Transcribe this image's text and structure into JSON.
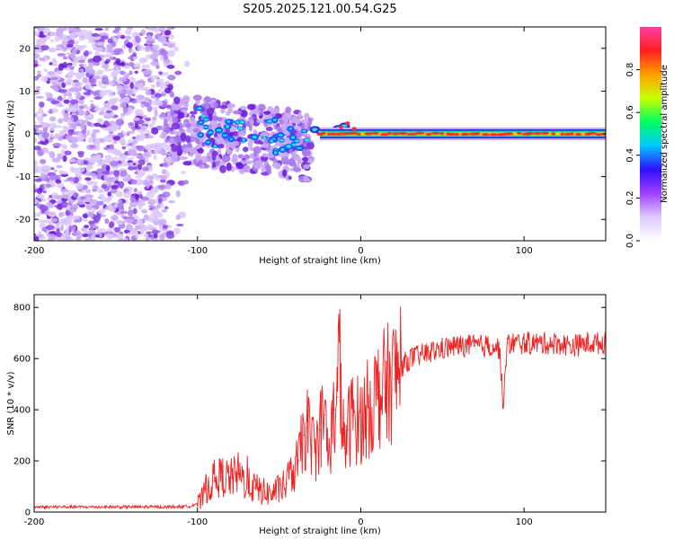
{
  "title": "S205.2025.121.00.54.G25",
  "colors": {
    "snr_line": "#ee2222",
    "scatter_low": "#d8c8f0",
    "scatter_high": "#6a1ad8",
    "band_core": "#ff2a2a",
    "band_mid": "#33ee44",
    "band_edge": "#2a2ad8"
  },
  "chart_data": [
    {
      "type": "heatmap",
      "name": "spectrogram",
      "xlabel": "Height of straight line (km)",
      "ylabel": "Frequency (Hz)",
      "xlim": [
        -200,
        150
      ],
      "ylim": [
        -25,
        25
      ],
      "x_ticks": [
        -200,
        -100,
        0,
        100
      ],
      "y_ticks": [
        -20,
        -10,
        0,
        10,
        20
      ],
      "colorbar": {
        "label": "Normalized spectral amplitude",
        "range": [
          0,
          1
        ],
        "ticks": [
          "0.0",
          "0.2",
          "0.4",
          "0.6",
          "0.8"
        ],
        "tick_values": [
          0.0,
          0.2,
          0.4,
          0.6,
          0.8
        ],
        "colormap": [
          "#ffffff",
          "#e0c8ff",
          "#a040ff",
          "#3010ff",
          "#00c8ff",
          "#00ff60",
          "#c8ff00",
          "#ffa000",
          "#ff2020",
          "#ff40a0"
        ]
      },
      "features": [
        {
          "region": "noise",
          "x_range": [
            -200,
            -115
          ],
          "y_range": [
            -25,
            25
          ],
          "amplitude": 0.15
        },
        {
          "region": "scattered-signal",
          "x_range": [
            -115,
            -30
          ],
          "y_range": [
            -13,
            9
          ],
          "amplitude": 0.3
        },
        {
          "region": "signal-band",
          "x_range": [
            -25,
            150
          ],
          "center_hz": 0,
          "amplitude": 0.9
        }
      ]
    },
    {
      "type": "line",
      "name": "snr",
      "xlabel": "Height of straight line (km)",
      "ylabel": "SNR (10 * v/v)",
      "xlim": [
        -200,
        150
      ],
      "ylim": [
        0,
        850
      ],
      "x_ticks": [
        -200,
        -100,
        0,
        100
      ],
      "y_ticks": [
        0,
        200,
        400,
        600,
        800
      ],
      "series": [
        {
          "x": [
            -200,
            -180,
            -160,
            -140,
            -120,
            -105,
            -98,
            -95,
            -90,
            -85,
            -80,
            -75,
            -70,
            -65,
            -60,
            -55,
            -50,
            -45,
            -42,
            -38,
            -35,
            -33,
            -30,
            -28,
            -25,
            -22,
            -20,
            -18,
            -16,
            -14,
            -13,
            -12,
            -10,
            -8,
            -5,
            -2,
            0,
            5,
            10,
            15,
            20,
            25,
            30,
            40,
            50,
            60,
            70,
            80,
            85,
            87,
            90,
            100,
            110,
            120,
            130,
            140,
            150
          ],
          "y": [
            20,
            20,
            20,
            20,
            20,
            22,
            40,
            90,
            120,
            140,
            130,
            150,
            110,
            95,
            80,
            70,
            90,
            110,
            150,
            200,
            300,
            330,
            280,
            230,
            320,
            380,
            230,
            300,
            400,
            450,
            750,
            400,
            250,
            320,
            380,
            360,
            360,
            410,
            460,
            490,
            520,
            570,
            600,
            620,
            640,
            650,
            650,
            650,
            640,
            420,
            660,
            660,
            660,
            660,
            650,
            660,
            660
          ]
        }
      ]
    }
  ]
}
